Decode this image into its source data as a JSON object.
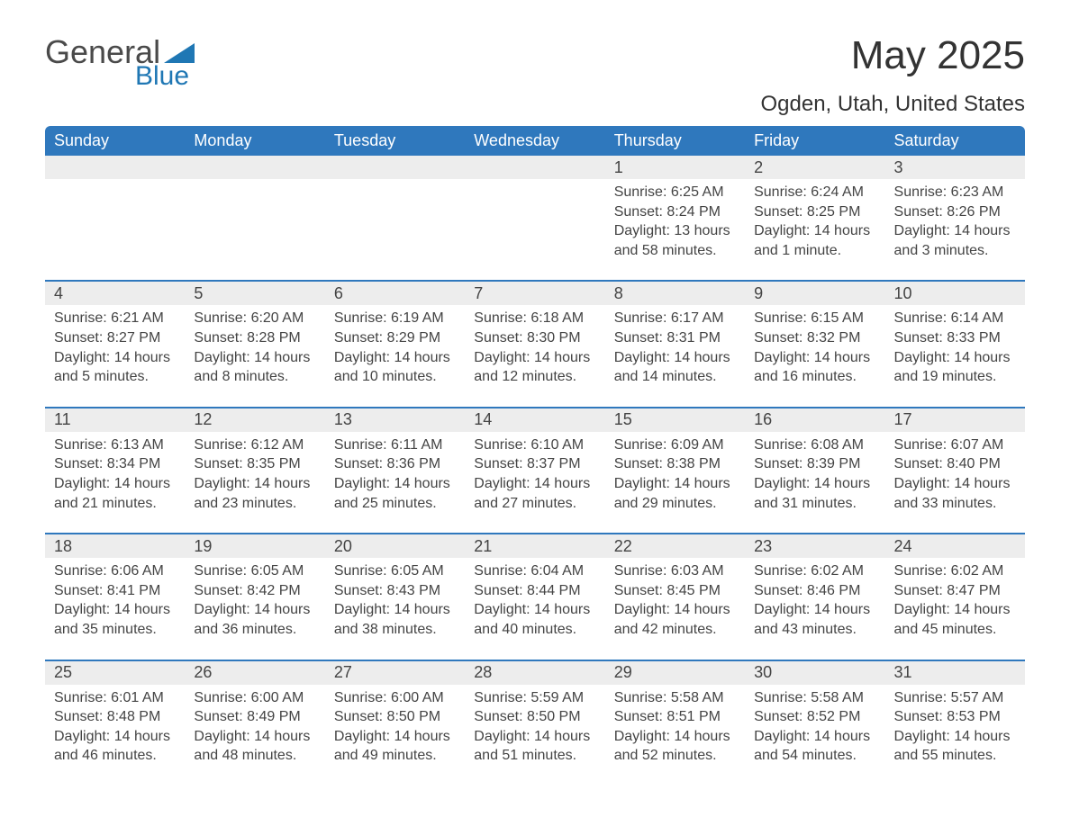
{
  "brand": {
    "name_part1": "General",
    "name_part2": "Blue",
    "accent_color": "#1f77b4"
  },
  "title": "May 2025",
  "location": "Ogden, Utah, United States",
  "colors": {
    "header_bg": "#2f78bd",
    "header_text": "#ffffff",
    "daynum_bg": "#ededed",
    "text": "#444444",
    "rule": "#2f78bd",
    "page_bg": "#ffffff"
  },
  "day_headers": [
    "Sunday",
    "Monday",
    "Tuesday",
    "Wednesday",
    "Thursday",
    "Friday",
    "Saturday"
  ],
  "weeks": [
    [
      null,
      null,
      null,
      null,
      {
        "n": "1",
        "sunrise": "Sunrise: 6:25 AM",
        "sunset": "Sunset: 8:24 PM",
        "daylight": "Daylight: 13 hours and 58 minutes."
      },
      {
        "n": "2",
        "sunrise": "Sunrise: 6:24 AM",
        "sunset": "Sunset: 8:25 PM",
        "daylight": "Daylight: 14 hours and 1 minute."
      },
      {
        "n": "3",
        "sunrise": "Sunrise: 6:23 AM",
        "sunset": "Sunset: 8:26 PM",
        "daylight": "Daylight: 14 hours and 3 minutes."
      }
    ],
    [
      {
        "n": "4",
        "sunrise": "Sunrise: 6:21 AM",
        "sunset": "Sunset: 8:27 PM",
        "daylight": "Daylight: 14 hours and 5 minutes."
      },
      {
        "n": "5",
        "sunrise": "Sunrise: 6:20 AM",
        "sunset": "Sunset: 8:28 PM",
        "daylight": "Daylight: 14 hours and 8 minutes."
      },
      {
        "n": "6",
        "sunrise": "Sunrise: 6:19 AM",
        "sunset": "Sunset: 8:29 PM",
        "daylight": "Daylight: 14 hours and 10 minutes."
      },
      {
        "n": "7",
        "sunrise": "Sunrise: 6:18 AM",
        "sunset": "Sunset: 8:30 PM",
        "daylight": "Daylight: 14 hours and 12 minutes."
      },
      {
        "n": "8",
        "sunrise": "Sunrise: 6:17 AM",
        "sunset": "Sunset: 8:31 PM",
        "daylight": "Daylight: 14 hours and 14 minutes."
      },
      {
        "n": "9",
        "sunrise": "Sunrise: 6:15 AM",
        "sunset": "Sunset: 8:32 PM",
        "daylight": "Daylight: 14 hours and 16 minutes."
      },
      {
        "n": "10",
        "sunrise": "Sunrise: 6:14 AM",
        "sunset": "Sunset: 8:33 PM",
        "daylight": "Daylight: 14 hours and 19 minutes."
      }
    ],
    [
      {
        "n": "11",
        "sunrise": "Sunrise: 6:13 AM",
        "sunset": "Sunset: 8:34 PM",
        "daylight": "Daylight: 14 hours and 21 minutes."
      },
      {
        "n": "12",
        "sunrise": "Sunrise: 6:12 AM",
        "sunset": "Sunset: 8:35 PM",
        "daylight": "Daylight: 14 hours and 23 minutes."
      },
      {
        "n": "13",
        "sunrise": "Sunrise: 6:11 AM",
        "sunset": "Sunset: 8:36 PM",
        "daylight": "Daylight: 14 hours and 25 minutes."
      },
      {
        "n": "14",
        "sunrise": "Sunrise: 6:10 AM",
        "sunset": "Sunset: 8:37 PM",
        "daylight": "Daylight: 14 hours and 27 minutes."
      },
      {
        "n": "15",
        "sunrise": "Sunrise: 6:09 AM",
        "sunset": "Sunset: 8:38 PM",
        "daylight": "Daylight: 14 hours and 29 minutes."
      },
      {
        "n": "16",
        "sunrise": "Sunrise: 6:08 AM",
        "sunset": "Sunset: 8:39 PM",
        "daylight": "Daylight: 14 hours and 31 minutes."
      },
      {
        "n": "17",
        "sunrise": "Sunrise: 6:07 AM",
        "sunset": "Sunset: 8:40 PM",
        "daylight": "Daylight: 14 hours and 33 minutes."
      }
    ],
    [
      {
        "n": "18",
        "sunrise": "Sunrise: 6:06 AM",
        "sunset": "Sunset: 8:41 PM",
        "daylight": "Daylight: 14 hours and 35 minutes."
      },
      {
        "n": "19",
        "sunrise": "Sunrise: 6:05 AM",
        "sunset": "Sunset: 8:42 PM",
        "daylight": "Daylight: 14 hours and 36 minutes."
      },
      {
        "n": "20",
        "sunrise": "Sunrise: 6:05 AM",
        "sunset": "Sunset: 8:43 PM",
        "daylight": "Daylight: 14 hours and 38 minutes."
      },
      {
        "n": "21",
        "sunrise": "Sunrise: 6:04 AM",
        "sunset": "Sunset: 8:44 PM",
        "daylight": "Daylight: 14 hours and 40 minutes."
      },
      {
        "n": "22",
        "sunrise": "Sunrise: 6:03 AM",
        "sunset": "Sunset: 8:45 PM",
        "daylight": "Daylight: 14 hours and 42 minutes."
      },
      {
        "n": "23",
        "sunrise": "Sunrise: 6:02 AM",
        "sunset": "Sunset: 8:46 PM",
        "daylight": "Daylight: 14 hours and 43 minutes."
      },
      {
        "n": "24",
        "sunrise": "Sunrise: 6:02 AM",
        "sunset": "Sunset: 8:47 PM",
        "daylight": "Daylight: 14 hours and 45 minutes."
      }
    ],
    [
      {
        "n": "25",
        "sunrise": "Sunrise: 6:01 AM",
        "sunset": "Sunset: 8:48 PM",
        "daylight": "Daylight: 14 hours and 46 minutes."
      },
      {
        "n": "26",
        "sunrise": "Sunrise: 6:00 AM",
        "sunset": "Sunset: 8:49 PM",
        "daylight": "Daylight: 14 hours and 48 minutes."
      },
      {
        "n": "27",
        "sunrise": "Sunrise: 6:00 AM",
        "sunset": "Sunset: 8:50 PM",
        "daylight": "Daylight: 14 hours and 49 minutes."
      },
      {
        "n": "28",
        "sunrise": "Sunrise: 5:59 AM",
        "sunset": "Sunset: 8:50 PM",
        "daylight": "Daylight: 14 hours and 51 minutes."
      },
      {
        "n": "29",
        "sunrise": "Sunrise: 5:58 AM",
        "sunset": "Sunset: 8:51 PM",
        "daylight": "Daylight: 14 hours and 52 minutes."
      },
      {
        "n": "30",
        "sunrise": "Sunrise: 5:58 AM",
        "sunset": "Sunset: 8:52 PM",
        "daylight": "Daylight: 14 hours and 54 minutes."
      },
      {
        "n": "31",
        "sunrise": "Sunrise: 5:57 AM",
        "sunset": "Sunset: 8:53 PM",
        "daylight": "Daylight: 14 hours and 55 minutes."
      }
    ]
  ]
}
